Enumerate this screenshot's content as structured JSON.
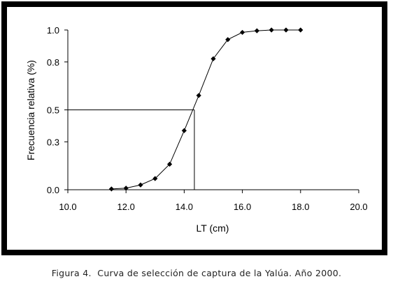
{
  "chart_data": {
    "type": "line",
    "xlabel": "LT (cm)",
    "ylabel": "Frecuencia relativa (%)",
    "xlim": [
      10.0,
      20.0
    ],
    "ylim": [
      0.0,
      1.0
    ],
    "x_ticks": [
      "10.0",
      "12.0",
      "14.0",
      "16.0",
      "18.0",
      "20.0"
    ],
    "y_ticks": [
      "0.0",
      "0.3",
      "0.5",
      "0.8",
      "1.0"
    ],
    "series": [
      {
        "x": [
          11.5,
          12.0,
          12.5,
          13.0,
          13.5,
          14.0,
          14.5,
          15.0,
          15.5,
          16.0,
          16.5,
          17.0,
          17.5,
          18.0
        ],
        "y": [
          0.005,
          0.01,
          0.03,
          0.07,
          0.16,
          0.37,
          0.59,
          0.82,
          0.94,
          0.985,
          0.995,
          1.0,
          1.0,
          1.0
        ]
      }
    ],
    "reference_lines": {
      "x": 14.35,
      "y": 0.5
    },
    "grid": false,
    "legend": "none",
    "colors": {
      "frame": "#000000",
      "line": "#000000",
      "background": "#ffffff"
    }
  },
  "caption": "Figura 4.  Curva de selección de captura de la Yalúa. Año 2000."
}
